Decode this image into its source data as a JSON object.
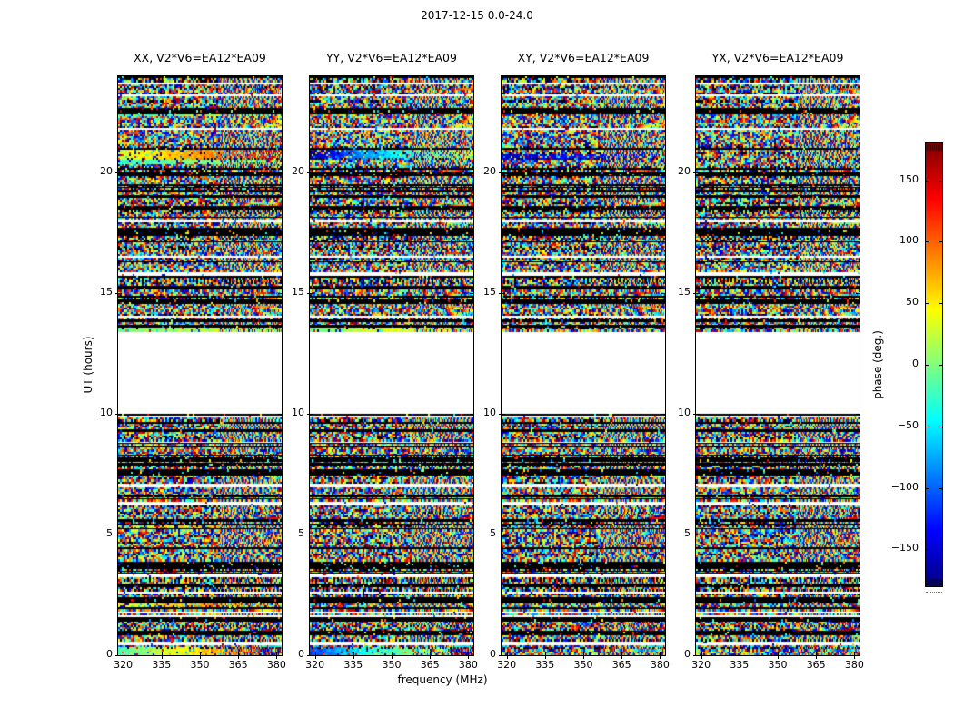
{
  "figure": {
    "title": "2017-12-15 0.0-24.0",
    "background": "#ffffff",
    "frame_color": "#000000"
  },
  "chart_data": {
    "type": "heatmap",
    "title": "2017-12-15 0.0-24.0",
    "panels": [
      {
        "title": "XX, V2*V6=EA12*EA09"
      },
      {
        "title": "YY, V2*V6=EA12*EA09"
      },
      {
        "title": "XY, V2*V6=EA12*EA09"
      },
      {
        "title": "YX, V2*V6=EA12*EA09"
      }
    ],
    "xlabel": "frequency (MHz)",
    "ylabel": "UT (hours)",
    "x_ticks": [
      320,
      335,
      350,
      365,
      380
    ],
    "x_range": [
      318,
      382
    ],
    "y_ticks": [
      0,
      5,
      10,
      15,
      20
    ],
    "y_range": [
      0,
      24
    ],
    "colorbar": {
      "label": "phase (deg.)",
      "ticks": [
        150,
        100,
        50,
        0,
        -50,
        -100,
        -150
      ],
      "range": [
        -180,
        180
      ],
      "colormap": "jet"
    },
    "time_features": {
      "data_gap_ut": [
        10.0,
        13.38
      ],
      "black_rows_ut": [
        23.95,
        22.6,
        21.0,
        20.15,
        19.95,
        19.5,
        19.0,
        18.55,
        15.2,
        14.65,
        13.85,
        9.62,
        9.3,
        8.1,
        6.6,
        5.6,
        4.4,
        2.9,
        1.5,
        0.9
      ],
      "black_bands_ut": [
        [
          17.35,
          17.75
        ],
        [
          7.45,
          7.68
        ],
        [
          3.6,
          3.92
        ],
        [
          2.15,
          2.38
        ]
      ],
      "white_rows_ut": [
        23.7,
        23.2,
        21.8,
        17.58,
        16.5,
        15.8,
        14.0,
        8.8,
        7.0,
        6.3,
        3.3,
        2.6,
        1.8,
        0.5
      ],
      "smooth_bands": [
        {
          "panel": 0,
          "ut": [
            20.55,
            20.92
          ],
          "stops": [
            0.58,
            0.68,
            0.78,
            0.9
          ],
          "noise_mix": 0.22
        },
        {
          "panel": 0,
          "ut": [
            20.38,
            20.52
          ],
          "stops": [
            0.42,
            0.5,
            0.52
          ],
          "noise_mix": 0.25
        },
        {
          "panel": 0,
          "ut": [
            22.35,
            22.46
          ],
          "stops": [
            0.44,
            0.5,
            0.48
          ],
          "noise_mix": 0.3
        },
        {
          "panel": 1,
          "ut": [
            20.55,
            20.92
          ],
          "stops": [
            0.04,
            0.28,
            0.45,
            0.58
          ],
          "noise_mix": 0.28
        },
        {
          "panel": 2,
          "ut": [
            20.55,
            20.78
          ],
          "stops": [
            0.06,
            0.14,
            0.1
          ],
          "noise_mix": 0.35
        },
        {
          "panel": 0,
          "ut": [
            13.38,
            13.54
          ],
          "stops": [
            0.48,
            0.56,
            0.52
          ],
          "noise_mix": 0.18
        },
        {
          "panel": 1,
          "ut": [
            13.38,
            13.54
          ],
          "stops": [
            0.5,
            0.6,
            0.55
          ],
          "noise_mix": 0.18
        },
        {
          "panel": 0,
          "ut": [
            5.25,
            5.5
          ],
          "stops": [
            0.55,
            0.7,
            0.6
          ],
          "noise_mix": 0.55
        },
        {
          "panel": 0,
          "ut": [
            2.0,
            2.14
          ],
          "stops": [
            0.6,
            0.72,
            0.65
          ],
          "noise_mix": 0.5
        },
        {
          "panel": 0,
          "ut": [
            0.0,
            0.3
          ],
          "stops": [
            0.45,
            0.6,
            0.72,
            0.85
          ],
          "noise_mix": 0.18
        },
        {
          "panel": 1,
          "ut": [
            0.0,
            0.3
          ],
          "stops": [
            0.18,
            0.4,
            0.52,
            0.6
          ],
          "noise_mix": 0.18
        }
      ]
    }
  }
}
